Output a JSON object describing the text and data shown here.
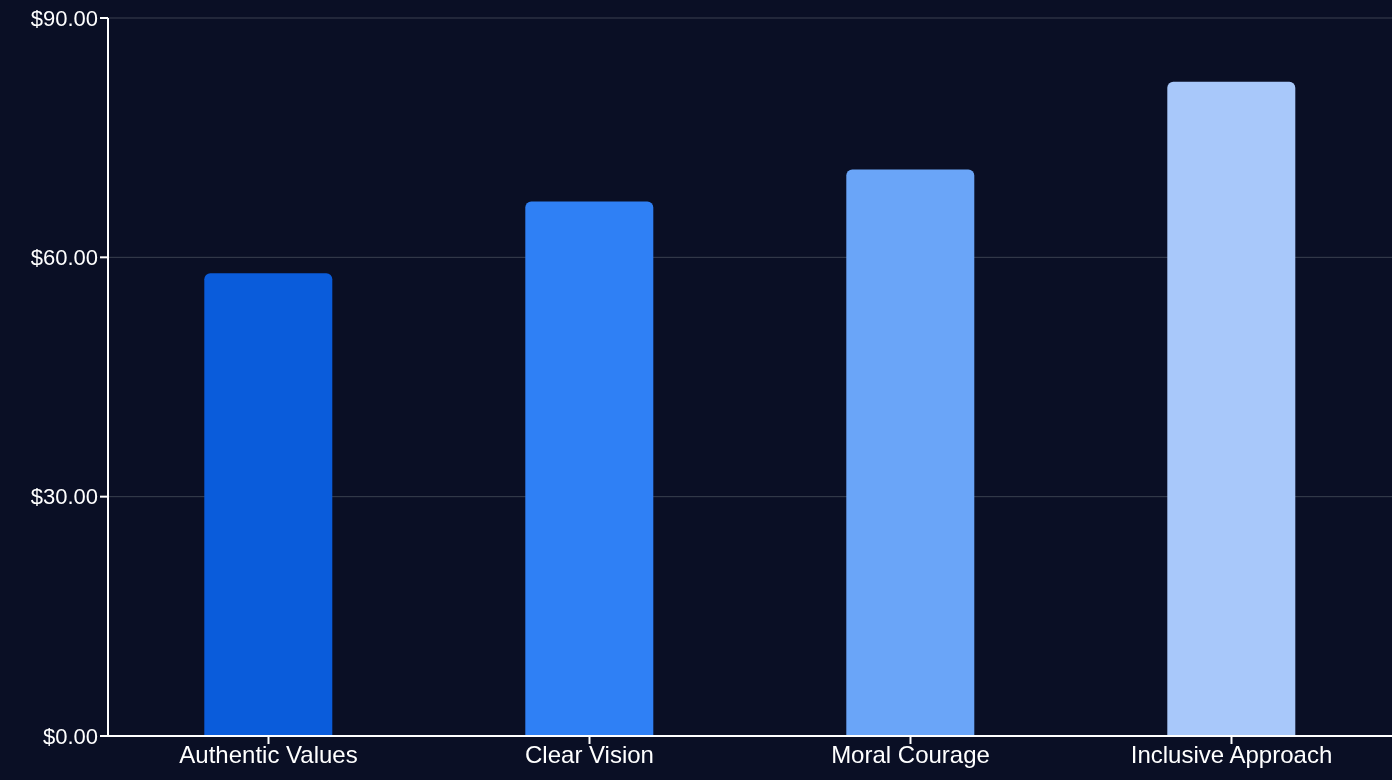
{
  "chart_data": {
    "type": "bar",
    "categories": [
      "Authentic Values",
      "Clear Vision",
      "Moral Courage",
      "Inclusive Approach"
    ],
    "values": [
      58,
      67,
      71,
      82
    ],
    "colors": [
      "#0a5cdb",
      "#2f80f5",
      "#6aa5f8",
      "#a8c8fa"
    ],
    "ylim": [
      0,
      90
    ],
    "yticks": [
      {
        "value": 0,
        "label": "$0.00"
      },
      {
        "value": 30,
        "label": "$30.00"
      },
      {
        "value": 60,
        "label": "$60.00"
      },
      {
        "value": 90,
        "label": "$90.00"
      }
    ],
    "grid": "y"
  }
}
